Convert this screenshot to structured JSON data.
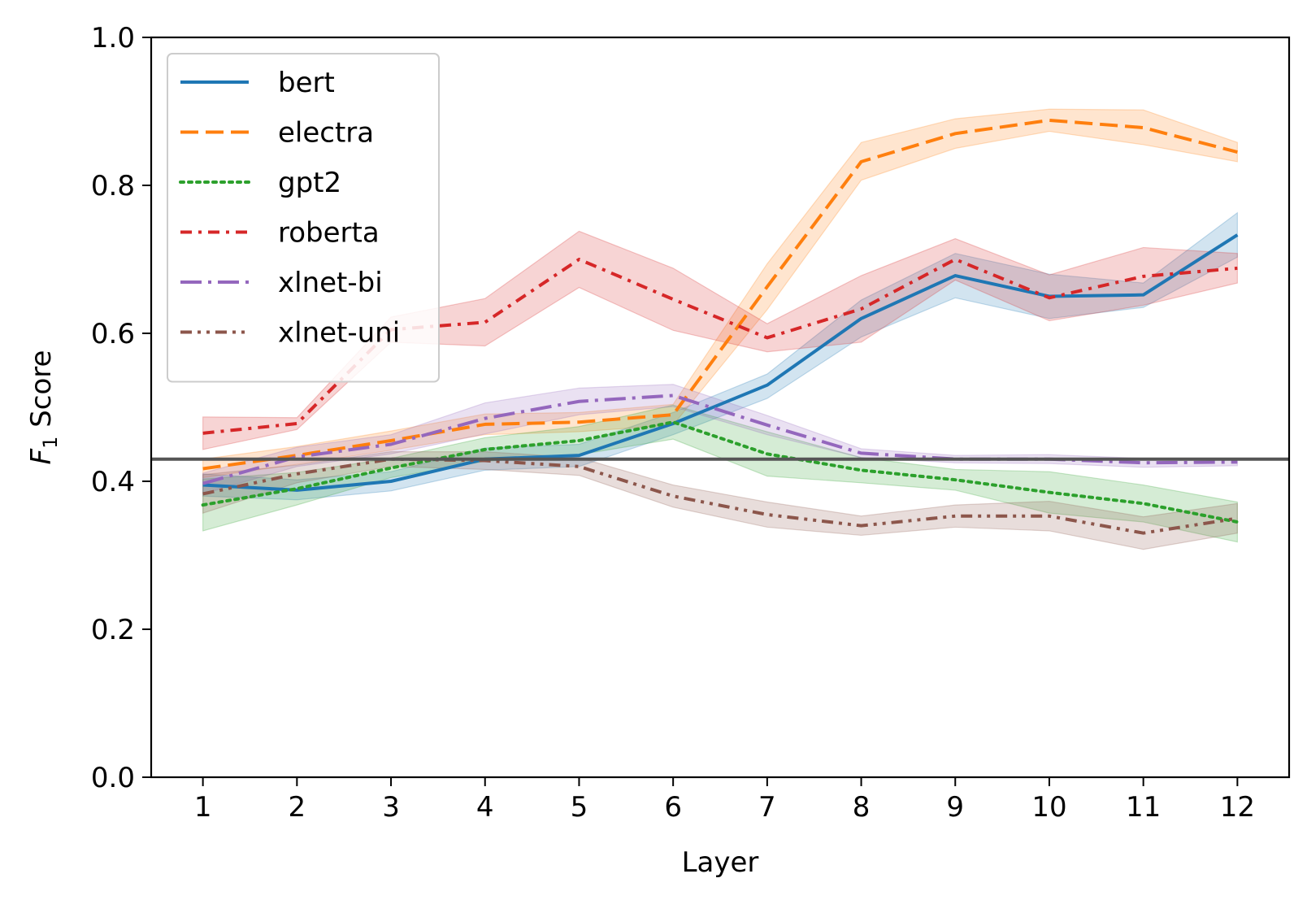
{
  "chart_data": {
    "type": "line",
    "xlabel": "Layer",
    "ylabel_main": "F",
    "ylabel_sub": "1",
    "ylabel_rest": " Score",
    "x": [
      1,
      2,
      3,
      4,
      5,
      6,
      7,
      8,
      9,
      10,
      11,
      12
    ],
    "x_tick_labels": [
      "1",
      "2",
      "3",
      "4",
      "5",
      "6",
      "7",
      "8",
      "9",
      "10",
      "11",
      "12"
    ],
    "xlim": [
      0.45,
      12.55
    ],
    "ylim": [
      0.0,
      1.0
    ],
    "y_ticks": [
      0.0,
      0.2,
      0.4,
      0.6,
      0.8,
      1.0
    ],
    "y_tick_labels": [
      "0.0",
      "0.2",
      "0.4",
      "0.6",
      "0.8",
      "1.0"
    ],
    "grid": false,
    "legend_position": "top-left",
    "baseline": {
      "y": 0.43,
      "color": "#555555"
    },
    "series": [
      {
        "name": "bert",
        "color": "#1f77b4",
        "dash": "solid",
        "values": [
          0.395,
          0.388,
          0.4,
          0.43,
          0.435,
          0.478,
          0.53,
          0.62,
          0.678,
          0.65,
          0.652,
          0.733
        ],
        "lower": [
          0.38,
          0.375,
          0.387,
          0.415,
          0.42,
          0.463,
          0.512,
          0.595,
          0.648,
          0.62,
          0.635,
          0.703
        ],
        "upper": [
          0.41,
          0.402,
          0.413,
          0.445,
          0.45,
          0.493,
          0.545,
          0.645,
          0.708,
          0.68,
          0.668,
          0.763
        ]
      },
      {
        "name": "electra",
        "color": "#ff7f0e",
        "dash": "dashed",
        "values": [
          0.417,
          0.435,
          0.455,
          0.477,
          0.48,
          0.49,
          0.663,
          0.832,
          0.87,
          0.888,
          0.878,
          0.845
        ],
        "lower": [
          0.405,
          0.423,
          0.442,
          0.463,
          0.467,
          0.476,
          0.632,
          0.807,
          0.85,
          0.873,
          0.855,
          0.832
        ],
        "upper": [
          0.43,
          0.447,
          0.468,
          0.491,
          0.493,
          0.504,
          0.694,
          0.858,
          0.89,
          0.903,
          0.902,
          0.858
        ]
      },
      {
        "name": "gpt2",
        "color": "#2ca02c",
        "dash": "dotted",
        "values": [
          0.368,
          0.39,
          0.418,
          0.443,
          0.455,
          0.48,
          0.437,
          0.415,
          0.402,
          0.385,
          0.37,
          0.345
        ],
        "lower": [
          0.333,
          0.368,
          0.405,
          0.427,
          0.436,
          0.457,
          0.407,
          0.398,
          0.388,
          0.357,
          0.345,
          0.318
        ],
        "upper": [
          0.403,
          0.412,
          0.431,
          0.459,
          0.474,
          0.503,
          0.467,
          0.432,
          0.416,
          0.413,
          0.395,
          0.372
        ]
      },
      {
        "name": "roberta",
        "color": "#d62728",
        "dash": "dashdot",
        "values": [
          0.465,
          0.478,
          0.605,
          0.615,
          0.7,
          0.646,
          0.594,
          0.633,
          0.7,
          0.648,
          0.677,
          0.688
        ],
        "lower": [
          0.443,
          0.47,
          0.588,
          0.583,
          0.662,
          0.604,
          0.575,
          0.588,
          0.672,
          0.617,
          0.638,
          0.668
        ],
        "upper": [
          0.487,
          0.486,
          0.622,
          0.647,
          0.738,
          0.688,
          0.613,
          0.678,
          0.728,
          0.679,
          0.716,
          0.708
        ]
      },
      {
        "name": "xlnet-bi",
        "color": "#9467bd",
        "dash": "longdashdot",
        "values": [
          0.397,
          0.433,
          0.45,
          0.485,
          0.508,
          0.516,
          0.476,
          0.438,
          0.43,
          0.43,
          0.425,
          0.426
        ],
        "lower": [
          0.383,
          0.42,
          0.437,
          0.464,
          0.49,
          0.501,
          0.463,
          0.432,
          0.425,
          0.424,
          0.419,
          0.421
        ],
        "upper": [
          0.411,
          0.446,
          0.463,
          0.506,
          0.526,
          0.531,
          0.489,
          0.444,
          0.435,
          0.436,
          0.431,
          0.431
        ]
      },
      {
        "name": "xlnet-uni",
        "color": "#8c564b",
        "dash": "dashdotdot",
        "values": [
          0.383,
          0.41,
          0.43,
          0.428,
          0.42,
          0.38,
          0.355,
          0.34,
          0.353,
          0.353,
          0.33,
          0.35
        ],
        "lower": [
          0.357,
          0.398,
          0.42,
          0.416,
          0.408,
          0.365,
          0.338,
          0.327,
          0.338,
          0.333,
          0.308,
          0.33
        ],
        "upper": [
          0.409,
          0.422,
          0.44,
          0.44,
          0.432,
          0.395,
          0.372,
          0.353,
          0.368,
          0.373,
          0.352,
          0.37
        ]
      }
    ]
  }
}
